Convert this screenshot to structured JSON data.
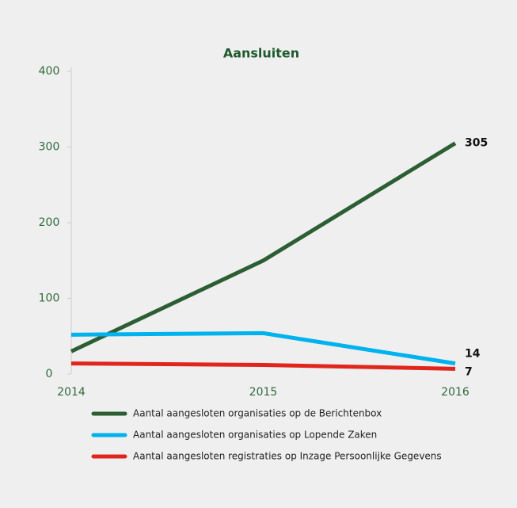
{
  "chart_data": {
    "type": "line",
    "title": "Aansluiten",
    "x": [
      2014,
      2015,
      2016
    ],
    "xlim": [
      2014,
      2016
    ],
    "xticks": [
      2014,
      2015,
      2016
    ],
    "ylim": [
      0,
      400
    ],
    "yticks": [
      0,
      100,
      200,
      300,
      400
    ],
    "series": [
      {
        "name": "Aantal aangesloten organisaties op de Berichtenbox",
        "color": "#2c5e33",
        "values": [
          30,
          150,
          305
        ]
      },
      {
        "name": "Aantal aangesloten organisaties op Lopende Zaken",
        "color": "#00b2ee",
        "values": [
          52,
          54,
          14
        ]
      },
      {
        "name": "Aantal aangesloten registraties op Inzage Persoonlijke Gegevens",
        "color": "#e0261c",
        "values": [
          14,
          12,
          7
        ]
      }
    ]
  }
}
